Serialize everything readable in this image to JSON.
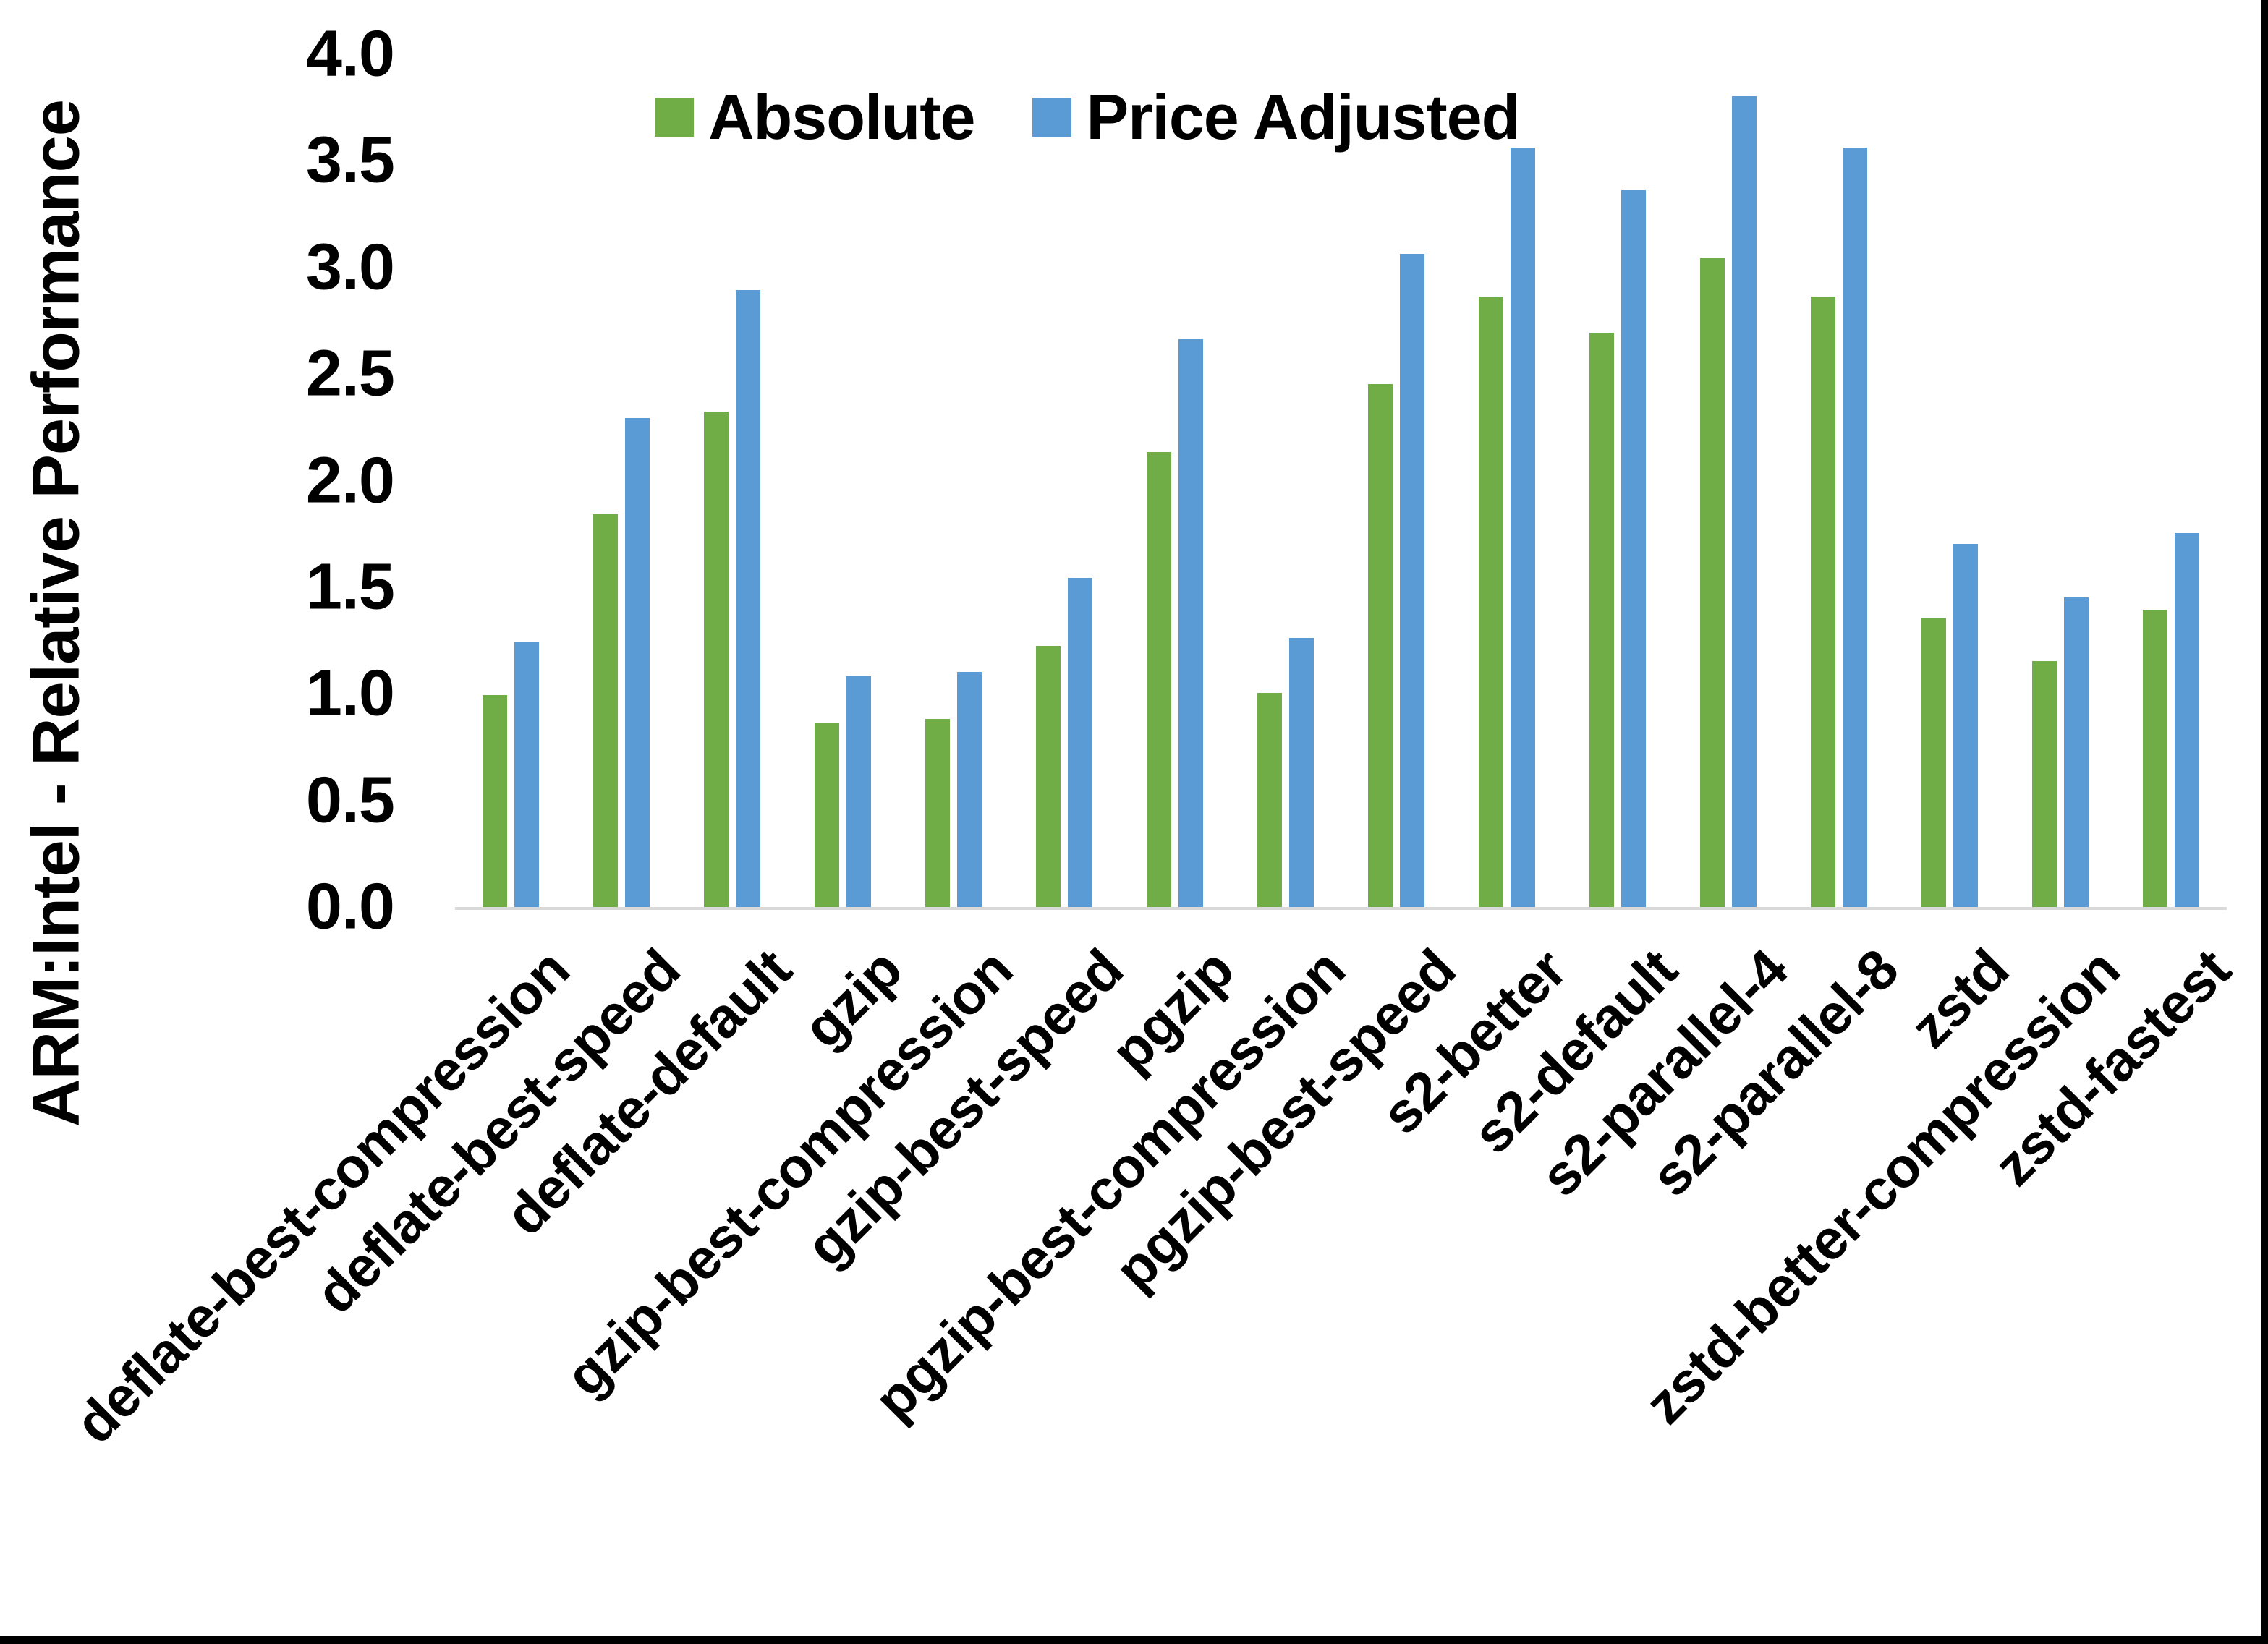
{
  "chart_data": {
    "type": "bar",
    "title": "",
    "ylabel": "ARM:Intel - Relative Performance",
    "xlabel": "",
    "ylim": [
      0.0,
      4.0
    ],
    "ytick_step": 0.5,
    "yticks": [
      "0.0",
      "0.5",
      "1.0",
      "1.5",
      "2.0",
      "2.5",
      "3.0",
      "3.5",
      "4.0"
    ],
    "grid": false,
    "legend_position": "top",
    "categories": [
      "deflate-best-compression",
      "deflate-best-speed",
      "deflate-default",
      "gzip",
      "gzip-best-compression",
      "gzip-best-speed",
      "pgzip",
      "pgzip-best-compression",
      "pgzip-best-speed",
      "s2-better",
      "s2-default",
      "s2-parallel-4",
      "s2-parallel-8",
      "zstd",
      "zstd-better-compression",
      "zstd-fastest"
    ],
    "series": [
      {
        "name": "Absolute",
        "color": "#70AD47",
        "values": [
          1.0,
          1.85,
          2.33,
          0.87,
          0.89,
          1.23,
          2.14,
          1.01,
          2.46,
          2.87,
          2.7,
          3.05,
          2.87,
          1.36,
          1.16,
          1.4
        ]
      },
      {
        "name": "Price Adjusted",
        "color": "#5B9BD5",
        "values": [
          1.25,
          2.3,
          2.9,
          1.09,
          1.11,
          1.55,
          2.67,
          1.27,
          3.07,
          3.57,
          3.37,
          3.81,
          3.57,
          1.71,
          1.46,
          1.76
        ]
      }
    ]
  },
  "colors": {
    "axis_line": "#D9D9D9",
    "text": "#000000",
    "frame": "#000000",
    "background": "#FFFFFF"
  }
}
